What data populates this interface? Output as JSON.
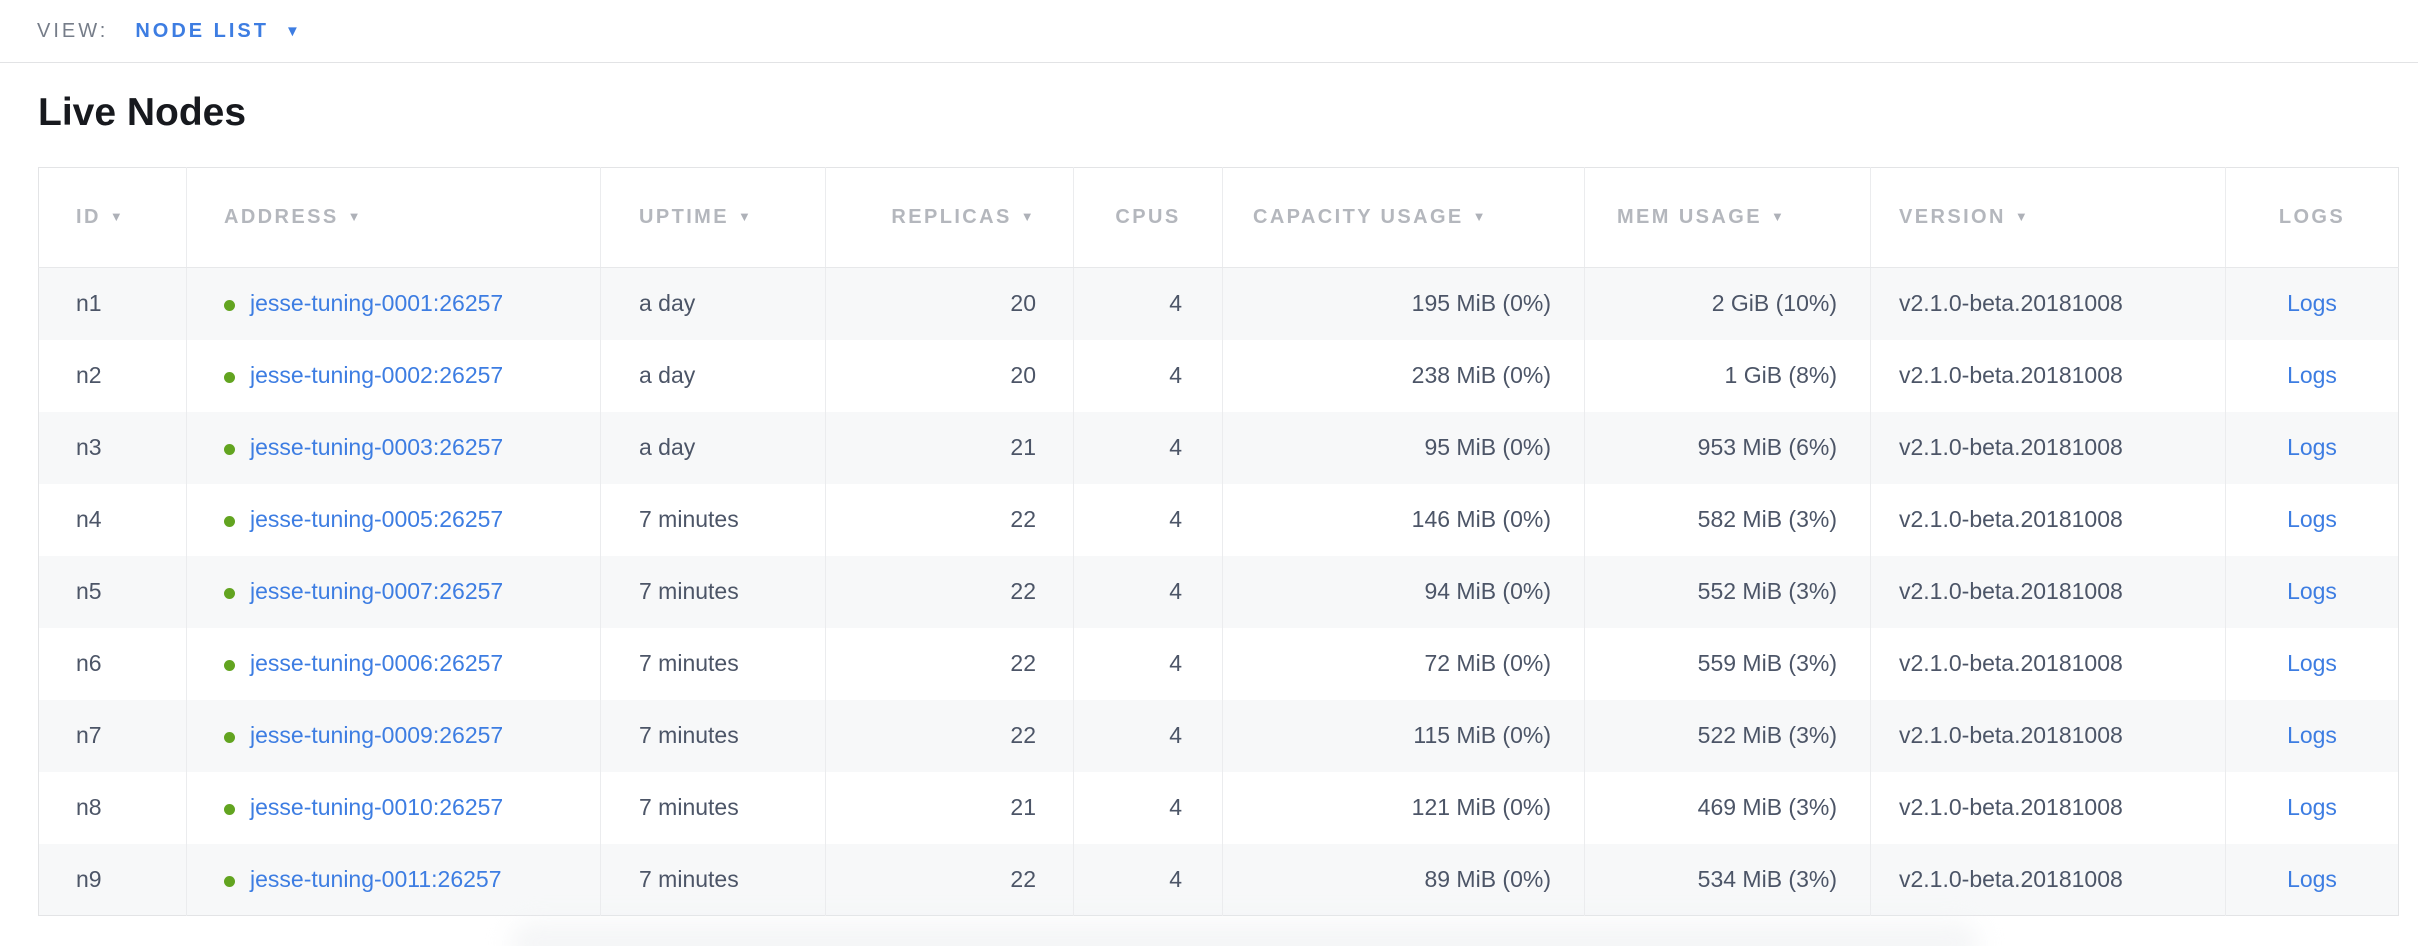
{
  "view_bar": {
    "label": "VIEW:",
    "selected": "NODE LIST",
    "caret": "▼"
  },
  "page": {
    "title": "Live Nodes"
  },
  "colors": {
    "link_blue": "#3d7de2",
    "node_live_green": "#62a420",
    "header_gray": "#b4b7bd",
    "cell_text": "#4c5567"
  },
  "table": {
    "sort_icon": "▼",
    "columns": [
      {
        "key": "id",
        "label": "ID",
        "sortable": true
      },
      {
        "key": "address",
        "label": "ADDRESS",
        "sortable": true
      },
      {
        "key": "uptime",
        "label": "UPTIME",
        "sortable": true
      },
      {
        "key": "replicas",
        "label": "REPLICAS",
        "sortable": true
      },
      {
        "key": "cpus",
        "label": "CPUS",
        "sortable": false
      },
      {
        "key": "capacity",
        "label": "CAPACITY USAGE",
        "sortable": true
      },
      {
        "key": "mem",
        "label": "MEM USAGE",
        "sortable": true
      },
      {
        "key": "version",
        "label": "VERSION",
        "sortable": true
      },
      {
        "key": "logs",
        "label": "LOGS",
        "sortable": false
      }
    ],
    "rows": [
      {
        "id": "n1",
        "address": "jesse-tuning-0001:26257",
        "uptime": "a day",
        "replicas": "20",
        "cpus": "4",
        "capacity": "195 MiB (0%)",
        "mem": "2 GiB (10%)",
        "version": "v2.1.0-beta.20181008",
        "logs": "Logs"
      },
      {
        "id": "n2",
        "address": "jesse-tuning-0002:26257",
        "uptime": "a day",
        "replicas": "20",
        "cpus": "4",
        "capacity": "238 MiB (0%)",
        "mem": "1 GiB (8%)",
        "version": "v2.1.0-beta.20181008",
        "logs": "Logs"
      },
      {
        "id": "n3",
        "address": "jesse-tuning-0003:26257",
        "uptime": "a day",
        "replicas": "21",
        "cpus": "4",
        "capacity": "95 MiB (0%)",
        "mem": "953 MiB (6%)",
        "version": "v2.1.0-beta.20181008",
        "logs": "Logs"
      },
      {
        "id": "n4",
        "address": "jesse-tuning-0005:26257",
        "uptime": "7 minutes",
        "replicas": "22",
        "cpus": "4",
        "capacity": "146 MiB (0%)",
        "mem": "582 MiB (3%)",
        "version": "v2.1.0-beta.20181008",
        "logs": "Logs"
      },
      {
        "id": "n5",
        "address": "jesse-tuning-0007:26257",
        "uptime": "7 minutes",
        "replicas": "22",
        "cpus": "4",
        "capacity": "94 MiB (0%)",
        "mem": "552 MiB (3%)",
        "version": "v2.1.0-beta.20181008",
        "logs": "Logs"
      },
      {
        "id": "n6",
        "address": "jesse-tuning-0006:26257",
        "uptime": "7 minutes",
        "replicas": "22",
        "cpus": "4",
        "capacity": "72 MiB (0%)",
        "mem": "559 MiB (3%)",
        "version": "v2.1.0-beta.20181008",
        "logs": "Logs"
      },
      {
        "id": "n7",
        "address": "jesse-tuning-0009:26257",
        "uptime": "7 minutes",
        "replicas": "22",
        "cpus": "4",
        "capacity": "115 MiB (0%)",
        "mem": "522 MiB (3%)",
        "version": "v2.1.0-beta.20181008",
        "logs": "Logs"
      },
      {
        "id": "n8",
        "address": "jesse-tuning-0010:26257",
        "uptime": "7 minutes",
        "replicas": "21",
        "cpus": "4",
        "capacity": "121 MiB (0%)",
        "mem": "469 MiB (3%)",
        "version": "v2.1.0-beta.20181008",
        "logs": "Logs"
      },
      {
        "id": "n9",
        "address": "jesse-tuning-0011:26257",
        "uptime": "7 minutes",
        "replicas": "22",
        "cpus": "4",
        "capacity": "89 MiB (0%)",
        "mem": "534 MiB (3%)",
        "version": "v2.1.0-beta.20181008",
        "logs": "Logs"
      }
    ]
  }
}
